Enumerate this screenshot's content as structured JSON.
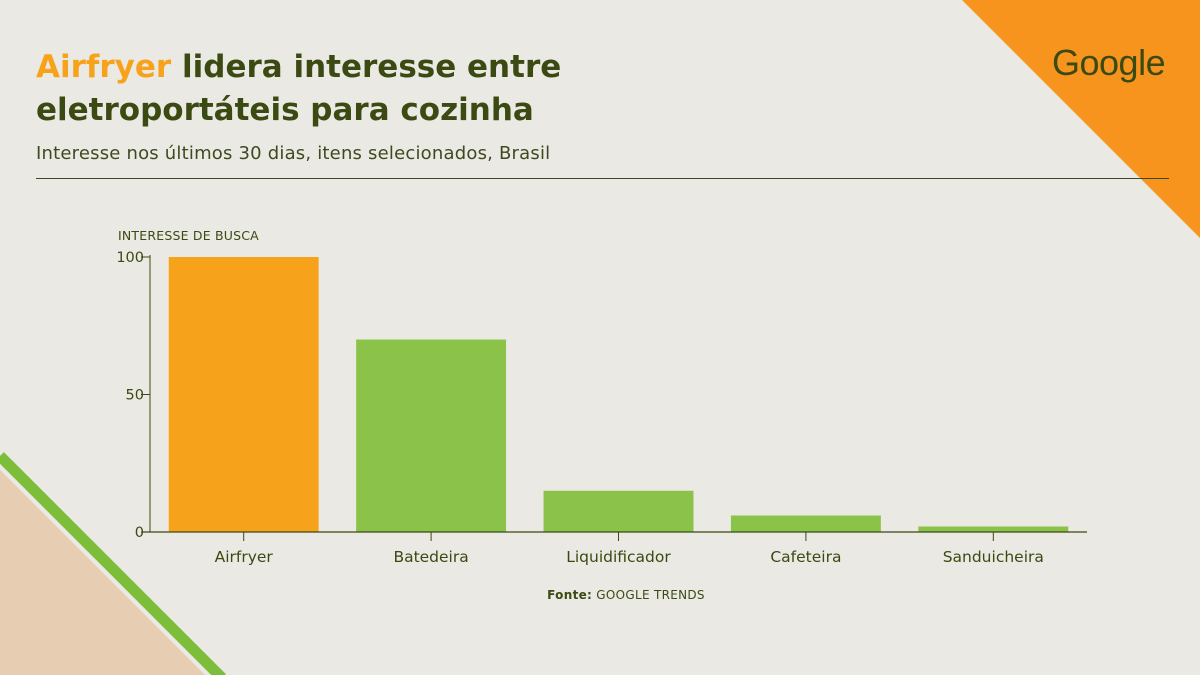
{
  "header": {
    "title_highlight": "Airfryer",
    "title_rest": " lidera interesse entre eletroportáteis para cozinha",
    "subtitle": "Interesse nos últimos 30 dias, itens selecionados, Brasil",
    "logo_text": "Google"
  },
  "footer": {
    "source_label": "Fonte:",
    "source_value": " GOOGLE TRENDS"
  },
  "colors": {
    "highlight": "#f7a21b",
    "bars": "#8bc34a",
    "accent_orange": "#f7941d",
    "accent_green": "#7cbd3b",
    "text": "#3a4a12"
  },
  "chart_data": {
    "type": "bar",
    "ylabel": "INTERESSE DE BUSCA",
    "categories": [
      "Airfryer",
      "Batedeira",
      "Liquidificador",
      "Cafeteira",
      "Sanduicheira"
    ],
    "values": [
      100,
      70,
      15,
      6,
      2
    ],
    "highlight_index": 0,
    "ylim": [
      0,
      100
    ],
    "yticks": [
      0,
      50,
      100
    ],
    "grid": false
  }
}
